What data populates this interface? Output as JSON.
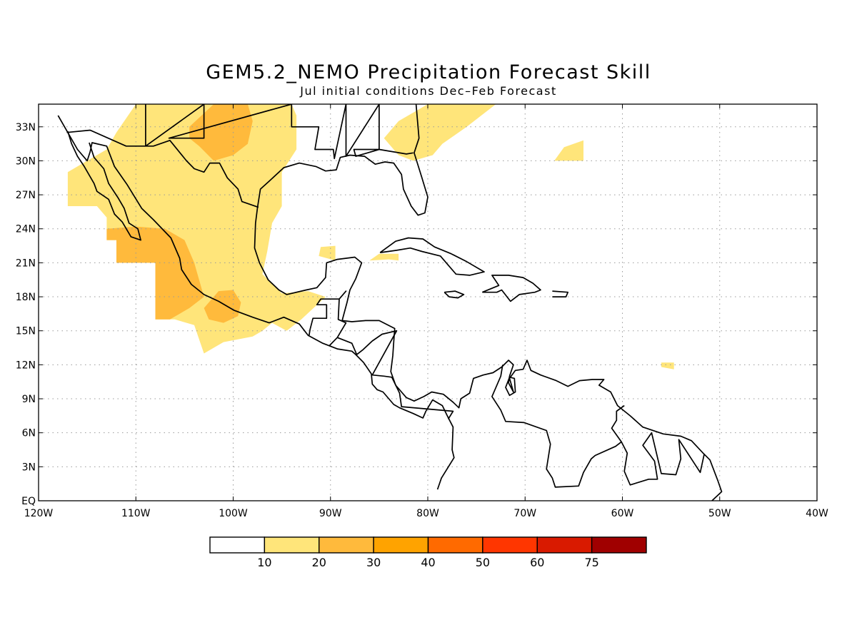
{
  "title": "GEM5.2_NEMO Precipitation Forecast Skill",
  "subtitle": "Jul initial conditions  Dec–Feb Forecast",
  "map": {
    "lon_range": [
      -120,
      -40
    ],
    "lat_range": [
      0,
      35
    ],
    "lat_ticks": [
      {
        "lat": 33,
        "label": "33N"
      },
      {
        "lat": 30,
        "label": "30N"
      },
      {
        "lat": 27,
        "label": "27N"
      },
      {
        "lat": 24,
        "label": "24N"
      },
      {
        "lat": 21,
        "label": "21N"
      },
      {
        "lat": 18,
        "label": "18N"
      },
      {
        "lat": 15,
        "label": "15N"
      },
      {
        "lat": 12,
        "label": "12N"
      },
      {
        "lat": 9,
        "label": "9N"
      },
      {
        "lat": 6,
        "label": "6N"
      },
      {
        "lat": 3,
        "label": "3N"
      },
      {
        "lat": 0,
        "label": "EQ"
      }
    ],
    "lon_ticks": [
      {
        "lon": -120,
        "label": "120W"
      },
      {
        "lon": -110,
        "label": "110W"
      },
      {
        "lon": -100,
        "label": "100W"
      },
      {
        "lon": -90,
        "label": "90W"
      },
      {
        "lon": -80,
        "label": "80W"
      },
      {
        "lon": -70,
        "label": "70W"
      },
      {
        "lon": -60,
        "label": "60W"
      },
      {
        "lon": -50,
        "label": "50W"
      },
      {
        "lon": -40,
        "label": "40W"
      }
    ],
    "grid": true
  },
  "colorbar": {
    "colors": [
      "#ffffff",
      "#ffe57a",
      "#ffba3c",
      "#ffa300",
      "#ff6a00",
      "#ff3600",
      "#d91a00",
      "#a00000"
    ],
    "labels": [
      "10",
      "20",
      "30",
      "40",
      "50",
      "60",
      "75"
    ]
  },
  "regions": [
    {
      "name": "mexico-skill-10-20",
      "level": 1,
      "points": [
        [
          -114,
          26
        ],
        [
          -117,
          26
        ],
        [
          -117,
          29
        ],
        [
          -115,
          30
        ],
        [
          -113,
          31
        ],
        [
          -112,
          32.5
        ],
        [
          -110,
          35
        ],
        [
          -94,
          35
        ],
        [
          -93.5,
          34
        ],
        [
          -93.5,
          31
        ],
        [
          -95,
          29
        ],
        [
          -95,
          26
        ],
        [
          -96,
          24.5
        ],
        [
          -96.5,
          22
        ],
        [
          -97,
          20
        ],
        [
          -95,
          18.3
        ],
        [
          -92.3,
          18.5
        ],
        [
          -90.5,
          18
        ],
        [
          -93,
          16
        ],
        [
          -94.5,
          15
        ],
        [
          -96,
          15.7
        ],
        [
          -97,
          15
        ],
        [
          -98,
          14.5
        ],
        [
          -101,
          14
        ],
        [
          -103,
          13
        ],
        [
          -104,
          15.5
        ],
        [
          -106,
          16
        ],
        [
          -108,
          16
        ],
        [
          -108,
          21
        ],
        [
          -110,
          21
        ],
        [
          -112,
          21
        ],
        [
          -112,
          23
        ],
        [
          -113,
          23
        ],
        [
          -113,
          25
        ]
      ]
    },
    {
      "name": "sw-mexico-skill-20-30",
      "level": 2,
      "points": [
        [
          -113,
          24
        ],
        [
          -110,
          24.2
        ],
        [
          -107,
          24
        ],
        [
          -105,
          23
        ],
        [
          -104,
          21
        ],
        [
          -103,
          18
        ],
        [
          -104.5,
          17
        ],
        [
          -106.5,
          16
        ],
        [
          -108,
          16
        ],
        [
          -108,
          19
        ],
        [
          -108,
          21
        ],
        [
          -110,
          21
        ],
        [
          -112,
          21
        ],
        [
          -112,
          23
        ],
        [
          -113,
          23
        ]
      ]
    },
    {
      "name": "guerrero-skill-20-30",
      "level": 2,
      "points": [
        [
          -103,
          17
        ],
        [
          -101.5,
          18.5
        ],
        [
          -100,
          18.6
        ],
        [
          -99.2,
          17.5
        ],
        [
          -99.5,
          16.3
        ],
        [
          -101,
          15.7
        ],
        [
          -102.5,
          16
        ]
      ]
    },
    {
      "name": "chihuahua-skill-20-30",
      "level": 2,
      "points": [
        [
          -104.5,
          33
        ],
        [
          -102,
          35
        ],
        [
          -98.5,
          35
        ],
        [
          -98,
          33.5
        ],
        [
          -98.5,
          31.5
        ],
        [
          -100,
          30.5
        ],
        [
          -102,
          30
        ],
        [
          -103.5,
          31.3
        ],
        [
          -104.5,
          32
        ]
      ]
    },
    {
      "name": "us-southeast-skill-10-20",
      "level": 1,
      "points": [
        [
          -84.5,
          32
        ],
        [
          -83,
          33.5
        ],
        [
          -80,
          35
        ],
        [
          -73,
          35
        ],
        [
          -76,
          33
        ],
        [
          -78.5,
          31.5
        ],
        [
          -79.5,
          30.5
        ],
        [
          -81.5,
          30
        ],
        [
          -83,
          30.5
        ]
      ]
    },
    {
      "name": "atlantic-skill-10-20",
      "level": 1,
      "points": [
        [
          -67,
          30
        ],
        [
          -64,
          30
        ],
        [
          -64,
          31.8
        ],
        [
          -66,
          31.2
        ]
      ]
    },
    {
      "name": "gulf-yucatan-skill-10-20",
      "level": 1,
      "points": [
        [
          -86,
          21.2
        ],
        [
          -84,
          21.3
        ],
        [
          -83,
          21.2
        ],
        [
          -83,
          21.8
        ],
        [
          -85,
          21.8
        ]
      ]
    },
    {
      "name": "gulf-central-skill-10-20",
      "level": 1,
      "points": [
        [
          -91.2,
          21.6
        ],
        [
          -89.5,
          21.2
        ],
        [
          -89.5,
          22.5
        ],
        [
          -91,
          22.4
        ]
      ]
    },
    {
      "name": "atlantic-east-skill-10-20",
      "level": 1,
      "points": [
        [
          -56,
          12.2
        ],
        [
          -54.7,
          12.2
        ],
        [
          -54.7,
          11.6
        ],
        [
          -56,
          11.8
        ]
      ]
    }
  ]
}
